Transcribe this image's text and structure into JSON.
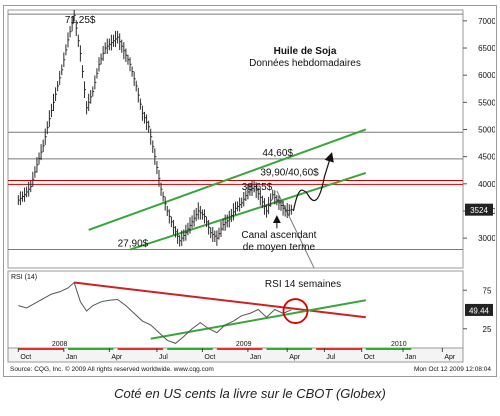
{
  "chart_data": {
    "type": "line",
    "title": "Huile de Soja",
    "subtitle": "Données hebdomadaires",
    "ylim": [
      2450,
      7200
    ],
    "yticks": [
      "7000",
      "6500",
      "6000",
      "5500",
      "5000",
      "4500",
      "4000",
      "3500",
      "3000"
    ],
    "ytick_values": [
      7000,
      6500,
      6000,
      5500,
      5000,
      4500,
      4000,
      3500,
      3000
    ],
    "last_price_label": "3524",
    "last_price": 3524,
    "price_series": [
      {
        "x": 0,
        "y": 3700
      },
      {
        "x": 3,
        "y": 3800
      },
      {
        "x": 6,
        "y": 3950
      },
      {
        "x": 9,
        "y": 4350
      },
      {
        "x": 12,
        "y": 4700
      },
      {
        "x": 15,
        "y": 5200
      },
      {
        "x": 18,
        "y": 5650
      },
      {
        "x": 21,
        "y": 6100
      },
      {
        "x": 24,
        "y": 6650
      },
      {
        "x": 27,
        "y": 7100
      },
      {
        "x": 30,
        "y": 6400
      },
      {
        "x": 33,
        "y": 5400
      },
      {
        "x": 36,
        "y": 5700
      },
      {
        "x": 39,
        "y": 6200
      },
      {
        "x": 42,
        "y": 6500
      },
      {
        "x": 45,
        "y": 6600
      },
      {
        "x": 48,
        "y": 6700
      },
      {
        "x": 51,
        "y": 6450
      },
      {
        "x": 54,
        "y": 6200
      },
      {
        "x": 57,
        "y": 5800
      },
      {
        "x": 60,
        "y": 5300
      },
      {
        "x": 63,
        "y": 5050
      },
      {
        "x": 66,
        "y": 4500
      },
      {
        "x": 69,
        "y": 3900
      },
      {
        "x": 72,
        "y": 3500
      },
      {
        "x": 75,
        "y": 3200
      },
      {
        "x": 78,
        "y": 2950
      },
      {
        "x": 81,
        "y": 3100
      },
      {
        "x": 84,
        "y": 3300
      },
      {
        "x": 87,
        "y": 3500
      },
      {
        "x": 90,
        "y": 3400
      },
      {
        "x": 93,
        "y": 3100
      },
      {
        "x": 96,
        "y": 3000
      },
      {
        "x": 99,
        "y": 3250
      },
      {
        "x": 102,
        "y": 3350
      },
      {
        "x": 105,
        "y": 3550
      },
      {
        "x": 108,
        "y": 3650
      },
      {
        "x": 111,
        "y": 3850
      },
      {
        "x": 114,
        "y": 3950
      },
      {
        "x": 117,
        "y": 3750
      },
      {
        "x": 120,
        "y": 3500
      },
      {
        "x": 123,
        "y": 3800
      },
      {
        "x": 126,
        "y": 3650
      },
      {
        "x": 129,
        "y": 3500
      },
      {
        "x": 132,
        "y": 3524
      }
    ],
    "x_range": [
      0,
      168
    ],
    "horizontal_levels": [
      {
        "value": 7125,
        "color": "#7a7a7a"
      },
      {
        "value": 4950,
        "color": "#7a7a7a"
      },
      {
        "value": 4460,
        "color": "#7a7a7a"
      },
      {
        "value": 4060,
        "color": "#cc0000"
      },
      {
        "value": 3990,
        "color": "#cc0000"
      },
      {
        "value": 2790,
        "color": "#7a7a7a"
      }
    ],
    "channel_lines": [
      {
        "name": "upper",
        "x1": 34,
        "y1": 3150,
        "x2": 168,
        "y2": 5000,
        "color": "#3aa53a"
      },
      {
        "name": "lower",
        "x1": 54,
        "y1": 2790,
        "x2": 168,
        "y2": 4200,
        "color": "#3aa53a"
      }
    ],
    "trend_line": {
      "x1": 125,
      "y1": 3870,
      "x2": 143,
      "y2": 2450,
      "color": "#7a7a7a"
    },
    "forecast_path": [
      {
        "x": 133,
        "y": 3500
      },
      {
        "x": 139,
        "y": 3850
      },
      {
        "x": 144,
        "y": 3900
      },
      {
        "x": 148,
        "y": 4130
      },
      {
        "x": 151,
        "y": 4500
      }
    ],
    "annotations": {
      "high": "71,25$",
      "level_4460": "44,60$",
      "level_4000": "39,90/40,60$",
      "level_3865": "38,65$",
      "low": "27,90$",
      "channel_line1": "Canal ascendant",
      "channel_line2": "de moyen terme"
    },
    "rsi": {
      "label": "RSI (14)",
      "title": "RSI 14 semaines",
      "ylim": [
        0,
        100
      ],
      "yticks": [
        "75",
        "25"
      ],
      "ytick_values": [
        75,
        25
      ],
      "last_label": "49.44",
      "last_value": 49.44,
      "series": [
        {
          "x": 0,
          "y": 55
        },
        {
          "x": 4,
          "y": 52
        },
        {
          "x": 8,
          "y": 58
        },
        {
          "x": 12,
          "y": 64
        },
        {
          "x": 16,
          "y": 70
        },
        {
          "x": 20,
          "y": 73
        },
        {
          "x": 24,
          "y": 78
        },
        {
          "x": 27,
          "y": 85
        },
        {
          "x": 30,
          "y": 60
        },
        {
          "x": 33,
          "y": 48
        },
        {
          "x": 36,
          "y": 55
        },
        {
          "x": 40,
          "y": 60
        },
        {
          "x": 44,
          "y": 62
        },
        {
          "x": 48,
          "y": 63
        },
        {
          "x": 52,
          "y": 55
        },
        {
          "x": 56,
          "y": 45
        },
        {
          "x": 60,
          "y": 35
        },
        {
          "x": 64,
          "y": 30
        },
        {
          "x": 68,
          "y": 20
        },
        {
          "x": 72,
          "y": 10
        },
        {
          "x": 76,
          "y": 6
        },
        {
          "x": 80,
          "y": 15
        },
        {
          "x": 84,
          "y": 25
        },
        {
          "x": 88,
          "y": 33
        },
        {
          "x": 92,
          "y": 25
        },
        {
          "x": 96,
          "y": 20
        },
        {
          "x": 100,
          "y": 30
        },
        {
          "x": 104,
          "y": 35
        },
        {
          "x": 108,
          "y": 42
        },
        {
          "x": 112,
          "y": 45
        },
        {
          "x": 116,
          "y": 50
        },
        {
          "x": 120,
          "y": 40
        },
        {
          "x": 124,
          "y": 50
        },
        {
          "x": 128,
          "y": 45
        },
        {
          "x": 132,
          "y": 49.44
        }
      ],
      "red_line": {
        "x1": 27,
        "y1": 85,
        "x2": 168,
        "y2": 40,
        "color": "#cc2222"
      },
      "green_line": {
        "x1": 64,
        "y1": 12,
        "x2": 168,
        "y2": 62,
        "color": "#3aa53a"
      },
      "circle": {
        "x": 134,
        "y": 48
      }
    },
    "x_axis": [
      {
        "label": "Oct",
        "x": 0
      },
      {
        "label": "Jan",
        "x": 22
      },
      {
        "label": "Apr",
        "x": 44
      },
      {
        "label": "Jul",
        "x": 67
      },
      {
        "label": "Oct",
        "x": 89
      },
      {
        "label": "Jan",
        "x": 111
      },
      {
        "label": "Apr",
        "x": 130
      },
      {
        "label": "Jul",
        "x": 148
      },
      {
        "label": "Oct",
        "x": 166
      }
    ],
    "x_axis_extra": [
      {
        "label": "Jan",
        "x": 186
      },
      {
        "label": "Apr",
        "x": 205
      }
    ],
    "years": [
      {
        "label": "2008",
        "x": 22
      },
      {
        "label": "2009",
        "x": 111
      },
      {
        "label": "2010",
        "x": 186
      }
    ],
    "x_display_range": [
      -5,
      215
    ]
  },
  "footer": {
    "source": "Source: CQG, Inc. © 2009 All rights reserved worldwide.   www.cqg.com",
    "timestamp": "Mon Oct 12 2009 12:08:04"
  },
  "caption": "Coté en US cents la livre sur le CBOT (Globex)"
}
